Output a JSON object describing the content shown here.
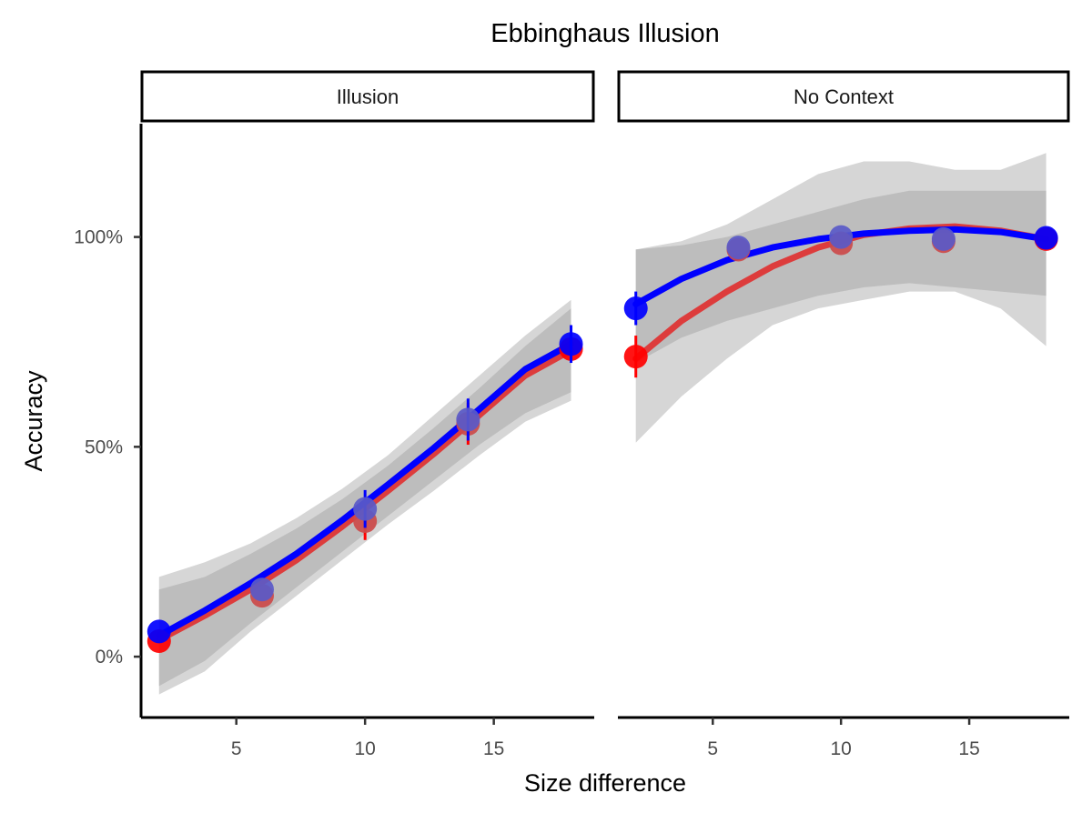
{
  "chart_data": {
    "type": "scatter",
    "title": "Ebbinghaus Illusion",
    "xlabel": "Size difference",
    "ylabel": "Accuracy",
    "xlim": [
      1.3,
      18.9
    ],
    "ylim": [
      -0.145,
      1.27
    ],
    "x_ticks": [
      5,
      10,
      15
    ],
    "x_tick_labels": [
      "5",
      "10",
      "15"
    ],
    "y_ticks": [
      0,
      0.5,
      1
    ],
    "y_tick_labels": [
      "0%",
      "50%",
      "100%"
    ],
    "grid": false,
    "legend": "none",
    "colors": {
      "red": "#ff0000",
      "blue": "#0000ff",
      "red_fit": "#dd3c3c",
      "ribbon_outer": "#d6d6d6",
      "ribbon_inner": "#bdbdbd"
    },
    "panels": [
      {
        "strip": "Illusion",
        "series": [
          {
            "color": "#ff0000",
            "points": [
              {
                "x": 2,
                "y": 0.037,
                "err": 0
              },
              {
                "x": 6,
                "y": 0.145,
                "err": 0
              },
              {
                "x": 10,
                "y": 0.323,
                "err": 0.045
              },
              {
                "x": 14,
                "y": 0.555,
                "err": 0.05
              },
              {
                "x": 18,
                "y": 0.733,
                "err": 0
              }
            ],
            "fit": [
              0.04,
              0.098,
              0.16,
              0.23,
              0.31,
              0.395,
              0.483,
              0.576,
              0.67,
              0.73
            ],
            "ci_inner": [
              [
                -0.07,
                0.16
              ],
              [
                -0.01,
                0.19
              ],
              [
                0.08,
                0.245
              ],
              [
                0.165,
                0.305
              ],
              [
                0.25,
                0.375
              ],
              [
                0.335,
                0.455
              ],
              [
                0.42,
                0.545
              ],
              [
                0.505,
                0.64
              ],
              [
                0.58,
                0.74
              ],
              [
                0.63,
                0.83
              ]
            ],
            "ci_outer": [
              [
                -0.09,
                0.19
              ],
              [
                -0.035,
                0.225
              ],
              [
                0.06,
                0.27
              ],
              [
                0.145,
                0.33
              ],
              [
                0.23,
                0.4
              ],
              [
                0.315,
                0.48
              ],
              [
                0.395,
                0.575
              ],
              [
                0.48,
                0.67
              ],
              [
                0.56,
                0.765
              ],
              [
                0.61,
                0.85
              ]
            ]
          },
          {
            "color": "#0000ff",
            "points": [
              {
                "x": 2,
                "y": 0.06,
                "err": 0
              },
              {
                "x": 6,
                "y": 0.16,
                "err": 0
              },
              {
                "x": 10,
                "y": 0.352,
                "err": 0.045
              },
              {
                "x": 14,
                "y": 0.565,
                "err": 0.05
              },
              {
                "x": 18,
                "y": 0.745,
                "err": 0.045
              }
            ],
            "fit": [
              0.05,
              0.11,
              0.175,
              0.245,
              0.325,
              0.41,
              0.497,
              0.59,
              0.685,
              0.745
            ]
          }
        ]
      },
      {
        "strip": "No Context",
        "series": [
          {
            "color": "#ff0000",
            "points": [
              {
                "x": 2,
                "y": 0.715,
                "err": 0.05
              },
              {
                "x": 6,
                "y": 0.97,
                "err": 0
              },
              {
                "x": 10,
                "y": 0.985,
                "err": 0
              },
              {
                "x": 14,
                "y": 0.99,
                "err": 0
              },
              {
                "x": 18,
                "y": 0.995,
                "err": 0
              }
            ],
            "fit": [
              0.71,
              0.8,
              0.87,
              0.93,
              0.975,
              1.005,
              1.02,
              1.025,
              1.015,
              0.995
            ],
            "ci_inner": [
              [
                0.7,
                0.97
              ],
              [
                0.76,
                0.98
              ],
              [
                0.8,
                1.0
              ],
              [
                0.83,
                1.03
              ],
              [
                0.86,
                1.06
              ],
              [
                0.88,
                1.09
              ],
              [
                0.89,
                1.11
              ],
              [
                0.88,
                1.11
              ],
              [
                0.87,
                1.11
              ],
              [
                0.86,
                1.11
              ]
            ],
            "ci_outer": [
              [
                0.51,
                0.97
              ],
              [
                0.62,
                0.99
              ],
              [
                0.71,
                1.03
              ],
              [
                0.79,
                1.09
              ],
              [
                0.83,
                1.15
              ],
              [
                0.85,
                1.18
              ],
              [
                0.87,
                1.18
              ],
              [
                0.87,
                1.16
              ],
              [
                0.83,
                1.16
              ],
              [
                0.74,
                1.2
              ]
            ]
          },
          {
            "color": "#0000ff",
            "points": [
              {
                "x": 2,
                "y": 0.83,
                "err": 0.04
              },
              {
                "x": 6,
                "y": 0.975,
                "err": 0
              },
              {
                "x": 10,
                "y": 1.0,
                "err": 0
              },
              {
                "x": 14,
                "y": 0.995,
                "err": 0
              },
              {
                "x": 18,
                "y": 0.998,
                "err": 0
              }
            ],
            "fit": [
              0.84,
              0.9,
              0.945,
              0.975,
              0.995,
              1.008,
              1.015,
              1.018,
              1.012,
              0.995
            ]
          }
        ]
      }
    ]
  }
}
